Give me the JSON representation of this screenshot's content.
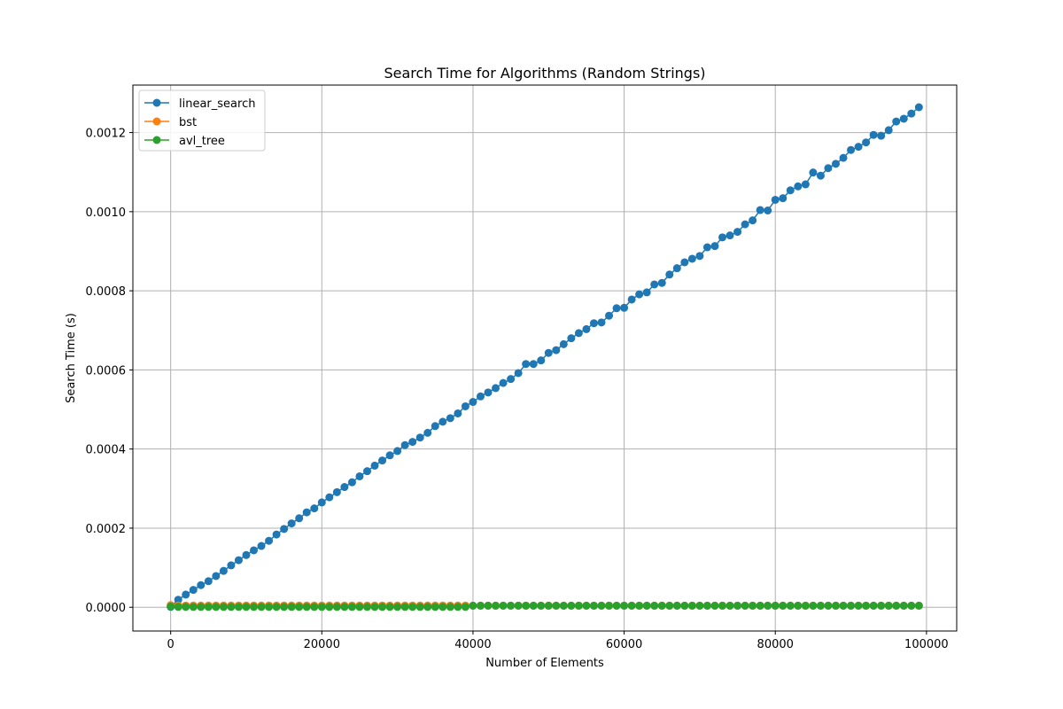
{
  "chart_data": {
    "type": "line",
    "title": "Search Time for Algorithms (Random Strings)",
    "xlabel": "Number of Elements",
    "ylabel": "Search Time (s)",
    "xlim": [
      -5000,
      104000
    ],
    "ylim": [
      -6e-05,
      0.00132
    ],
    "xticks": [
      0,
      20000,
      40000,
      60000,
      80000,
      100000
    ],
    "xtick_labels": [
      "0",
      "20000",
      "40000",
      "60000",
      "80000",
      "100000"
    ],
    "yticks": [
      0,
      0.0002,
      0.0004,
      0.0006,
      0.0008,
      0.001,
      0.0012
    ],
    "ytick_labels": [
      "0.0000",
      "0.0002",
      "0.0004",
      "0.0006",
      "0.0008",
      "0.0010",
      "0.0012"
    ],
    "grid": true,
    "legend_position": "top-left",
    "x": [
      0,
      1000,
      2000,
      3000,
      4000,
      5000,
      6000,
      7000,
      8000,
      9000,
      10000,
      11000,
      12000,
      13000,
      14000,
      15000,
      16000,
      17000,
      18000,
      19000,
      20000,
      21000,
      22000,
      23000,
      24000,
      25000,
      26000,
      27000,
      28000,
      29000,
      30000,
      31000,
      32000,
      33000,
      34000,
      35000,
      36000,
      37000,
      38000,
      39000,
      40000,
      41000,
      42000,
      43000,
      44000,
      45000,
      46000,
      47000,
      48000,
      49000,
      50000,
      51000,
      52000,
      53000,
      54000,
      55000,
      56000,
      57000,
      58000,
      59000,
      60000,
      61000,
      62000,
      63000,
      64000,
      65000,
      66000,
      67000,
      68000,
      69000,
      70000,
      71000,
      72000,
      73000,
      74000,
      75000,
      76000,
      77000,
      78000,
      79000,
      80000,
      81000,
      82000,
      83000,
      84000,
      85000,
      86000,
      87000,
      88000,
      89000,
      90000,
      91000,
      92000,
      93000,
      94000,
      95000,
      96000,
      97000,
      98000,
      99000
    ],
    "series": [
      {
        "name": "linear_search",
        "color": "#1f77b4",
        "values": [
          1e-06,
          1.9e-05,
          3.2e-05,
          4.4e-05,
          5.6e-05,
          6.6e-05,
          7.9e-05,
          9.2e-05,
          0.000106,
          0.000119,
          0.000132,
          0.000144,
          0.000155,
          0.000168,
          0.000184,
          0.000198,
          0.000212,
          0.000225,
          0.00024,
          0.00025,
          0.000265,
          0.000278,
          0.000291,
          0.000304,
          0.000316,
          0.000331,
          0.000344,
          0.000358,
          0.000371,
          0.000384,
          0.000395,
          0.00041,
          0.000418,
          0.000429,
          0.000441,
          0.000458,
          0.000469,
          0.000478,
          0.00049,
          0.000508,
          0.000519,
          0.000533,
          0.000543,
          0.000554,
          0.000567,
          0.000577,
          0.000592,
          0.000615,
          0.000615,
          0.000624,
          0.000643,
          0.00065,
          0.000665,
          0.00068,
          0.000693,
          0.000703,
          0.000718,
          0.00072,
          0.000737,
          0.000756,
          0.000757,
          0.000778,
          0.000791,
          0.000796,
          0.000816,
          0.00082,
          0.000841,
          0.000857,
          0.000872,
          0.000881,
          0.000888,
          0.00091,
          0.000913,
          0.000935,
          0.00094,
          0.000949,
          0.000968,
          0.000978,
          0.001004,
          0.001003,
          0.00103,
          0.001034,
          0.001054,
          0.001064,
          0.001069,
          0.001099,
          0.001091,
          0.00111,
          0.001121,
          0.001136,
          0.001156,
          0.001164,
          0.001175,
          0.001194,
          0.001192,
          0.001206,
          0.001228,
          0.001235,
          0.001248,
          0.001264
        ]
      },
      {
        "name": "bst",
        "color": "#ff7f0e",
        "values": [
          5.5e-06,
          4.5e-06,
          4.5e-06,
          4.5e-06,
          4.5e-06,
          4.5e-06,
          4.5e-06,
          4.5e-06,
          4.5e-06,
          4.5e-06,
          4.5e-06,
          4.5e-06,
          4.5e-06,
          4.5e-06,
          4.5e-06,
          4.5e-06,
          4.5e-06,
          4.5e-06,
          4.5e-06,
          4.5e-06,
          4.5e-06,
          4.5e-06,
          4.5e-06,
          4.5e-06,
          4.5e-06,
          4.5e-06,
          4.5e-06,
          4.5e-06,
          4.5e-06,
          4.5e-06,
          4.5e-06,
          4.5e-06,
          4.5e-06,
          4.5e-06,
          4.5e-06,
          4.5e-06,
          4.5e-06,
          4.5e-06,
          4.5e-06,
          4.5e-06,
          4e-06,
          4e-06,
          4e-06,
          4e-06,
          4e-06,
          4e-06,
          4e-06,
          4e-06,
          4e-06,
          4e-06,
          4e-06,
          4e-06,
          4e-06,
          4e-06,
          4e-06,
          4e-06,
          4e-06,
          4e-06,
          4e-06,
          4e-06,
          4e-06,
          4e-06,
          4e-06,
          4e-06,
          4e-06,
          4e-06,
          4e-06,
          4e-06,
          4e-06,
          4e-06,
          4e-06,
          4e-06,
          4e-06,
          4e-06,
          4e-06,
          4e-06,
          4e-06,
          4e-06,
          4e-06,
          4e-06,
          4e-06,
          4e-06,
          4e-06,
          4e-06,
          4e-06,
          4e-06,
          4e-06,
          4e-06,
          4e-06,
          4e-06,
          4e-06,
          4e-06,
          4e-06,
          4e-06,
          4e-06,
          4e-06,
          4e-06,
          4e-06,
          4e-06,
          4e-06
        ]
      },
      {
        "name": "avl_tree",
        "color": "#2ca02c",
        "values": [
          2e-06,
          1e-06,
          1e-06,
          1e-06,
          1e-06,
          1e-06,
          1e-06,
          1e-06,
          1e-06,
          1e-06,
          1e-06,
          1e-06,
          1e-06,
          1e-06,
          1e-06,
          1e-06,
          1e-06,
          1e-06,
          1e-06,
          1e-06,
          1e-06,
          1e-06,
          1e-06,
          1e-06,
          1e-06,
          1e-06,
          1e-06,
          1e-06,
          1e-06,
          1e-06,
          1e-06,
          1e-06,
          1e-06,
          1e-06,
          1e-06,
          1e-06,
          1e-06,
          1e-06,
          1e-06,
          1e-06,
          4e-06,
          4e-06,
          4e-06,
          4e-06,
          4e-06,
          4e-06,
          4e-06,
          4e-06,
          4e-06,
          4e-06,
          4e-06,
          4e-06,
          4e-06,
          4e-06,
          4e-06,
          4e-06,
          4e-06,
          4e-06,
          4e-06,
          4e-06,
          4e-06,
          4e-06,
          4e-06,
          4e-06,
          4e-06,
          4e-06,
          4e-06,
          4e-06,
          4e-06,
          4e-06,
          4e-06,
          4e-06,
          4e-06,
          4e-06,
          4e-06,
          4e-06,
          4e-06,
          4e-06,
          4e-06,
          4e-06,
          4e-06,
          4e-06,
          4e-06,
          4e-06,
          4e-06,
          4e-06,
          4e-06,
          4e-06,
          4e-06,
          4e-06,
          4e-06,
          4e-06,
          4e-06,
          4e-06,
          4e-06,
          4e-06,
          4e-06,
          4e-06,
          4e-06,
          4e-06
        ]
      }
    ]
  }
}
